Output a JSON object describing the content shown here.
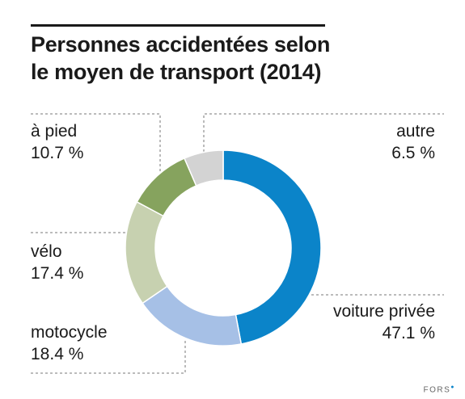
{
  "title_line1": "Personnes accidentées selon",
  "title_line2": "le moyen de transport (2014)",
  "brand": "FORS",
  "chart_data": {
    "type": "pie",
    "donut": true,
    "title": "Personnes accidentées selon le moyen de transport (2014)",
    "unit": "%",
    "slices": [
      {
        "label": "voiture privée",
        "value": 47.1,
        "value_text": "47.1 %",
        "color": "#0b84c9"
      },
      {
        "label": "motocycle",
        "value": 18.4,
        "value_text": "18.4 %",
        "color": "#a6c0e6"
      },
      {
        "label": "vélo",
        "value": 17.4,
        "value_text": "17.4 %",
        "color": "#c7d1b0"
      },
      {
        "label": "à pied",
        "value": 10.7,
        "value_text": "10.7 %",
        "color": "#86a35e"
      },
      {
        "label": "autre",
        "value": 6.5,
        "value_text": "6.5 %",
        "color": "#d3d3d3"
      }
    ]
  }
}
